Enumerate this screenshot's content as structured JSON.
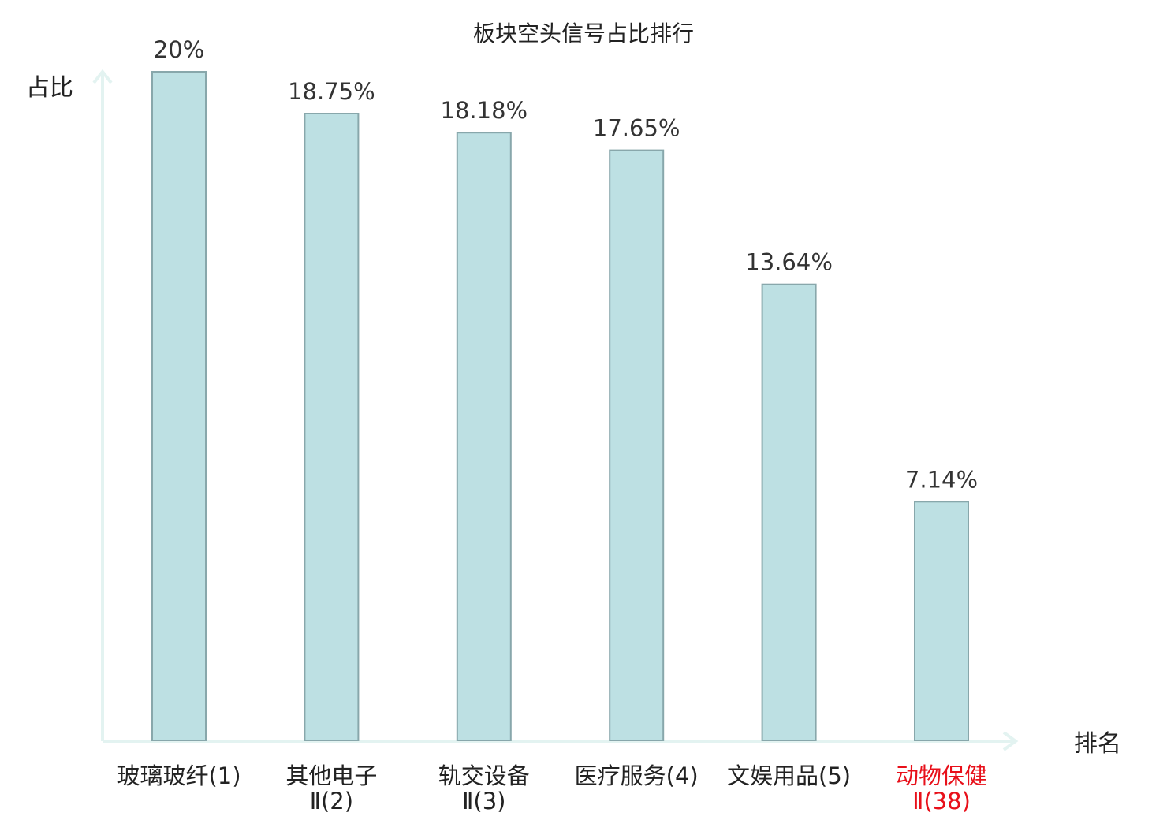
{
  "chart_data": {
    "type": "bar",
    "title": "板块空头信号占比排行",
    "ylabel": "占比",
    "xlabel": "排名",
    "ylim": [
      0,
      20
    ],
    "grid": false,
    "legend": "none",
    "categories": [
      {
        "lines": [
          "玻璃玻纤(1)"
        ],
        "highlight": false
      },
      {
        "lines": [
          "其他电子",
          "Ⅱ(2)"
        ],
        "highlight": false
      },
      {
        "lines": [
          "轨交设备",
          "Ⅱ(3)"
        ],
        "highlight": false
      },
      {
        "lines": [
          "医疗服务(4)"
        ],
        "highlight": false
      },
      {
        "lines": [
          "文娱用品(5)"
        ],
        "highlight": false
      },
      {
        "lines": [
          "动物保健",
          "Ⅱ(38)"
        ],
        "highlight": true
      }
    ],
    "values": [
      20,
      18.75,
      18.18,
      17.65,
      13.64,
      7.14
    ],
    "value_labels": [
      "20%",
      "18.75%",
      "18.18%",
      "17.65%",
      "13.64%",
      "7.14%"
    ],
    "colors": {
      "bar_fill": "#bde0e3",
      "bar_stroke": "#88a7ab",
      "axis": "#e3f3f1",
      "highlight_text": "#e8101a"
    }
  }
}
